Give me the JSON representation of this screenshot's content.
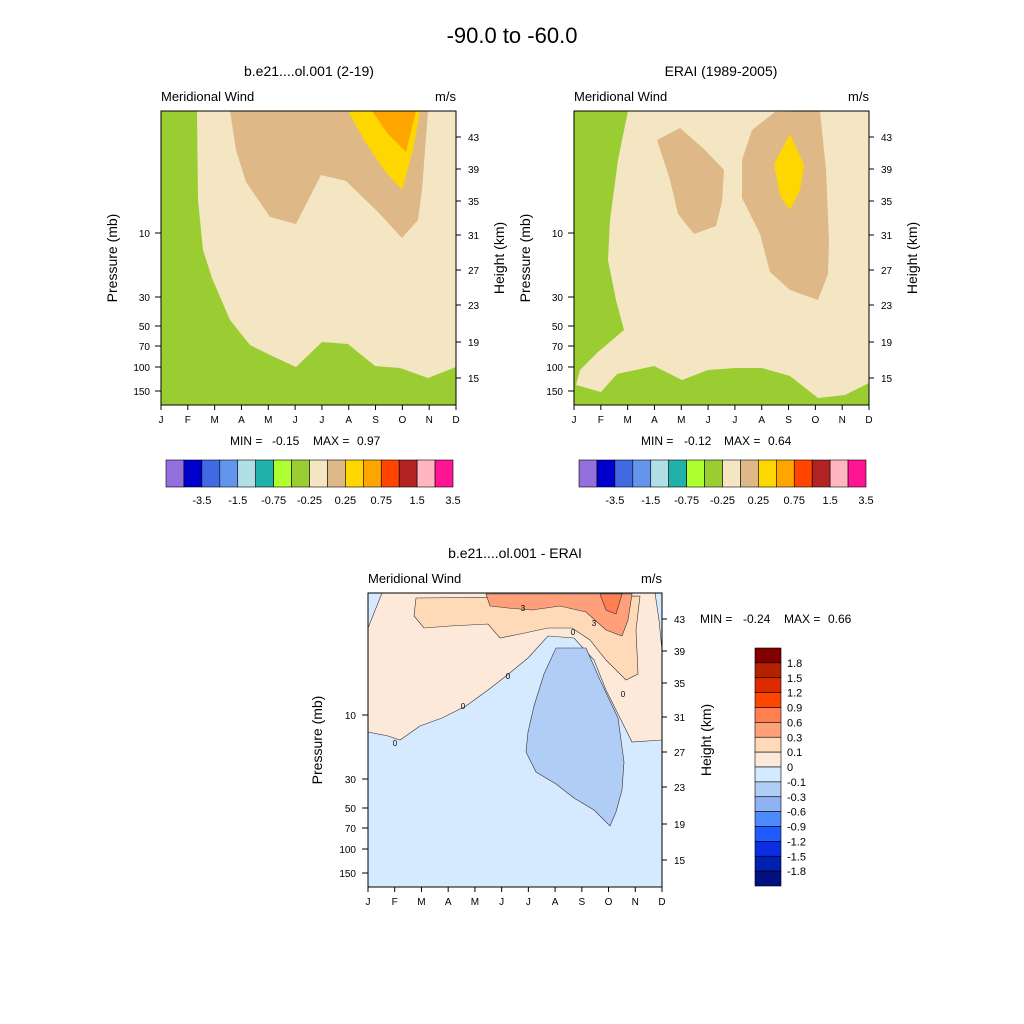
{
  "figure": {
    "title": "-90.0 to -60.0"
  },
  "shared": {
    "variable": "Meridional Wind",
    "units": "m/s",
    "y_left_label": "Pressure (mb)",
    "y_right_label": "Height (km)",
    "months": [
      "J",
      "F",
      "M",
      "A",
      "M",
      "J",
      "J",
      "A",
      "S",
      "O",
      "N",
      "D"
    ],
    "pressure_ticks": [
      "10",
      "30",
      "50",
      "70",
      "100",
      "150"
    ],
    "height_ticks": [
      "43",
      "39",
      "35",
      "31",
      "27",
      "23",
      "19",
      "15"
    ]
  },
  "chart_data": [
    {
      "type": "contour",
      "title": "b.e21....ol.001 (2-19)",
      "stats": {
        "min_label": "MIN =",
        "min": "-0.15",
        "max_label": "MAX =",
        "max": "0.97"
      },
      "colorbar": {
        "colors": [
          "#9370db",
          "#0000cd",
          "#4169e1",
          "#6495ed",
          "#b0e0e6",
          "#20b2aa",
          "#adff2f",
          "#9acd32",
          "#f5e6c3",
          "#deb887",
          "#ffd700",
          "#ffa500",
          "#ff4500",
          "#b22222",
          "#ffb6c1",
          "#ff1493"
        ],
        "labels": [
          "-3.5",
          "-1.5",
          "-0.75",
          "-0.25",
          "0.25",
          "0.75",
          "1.5",
          "3.5"
        ]
      }
    },
    {
      "type": "contour",
      "title": "ERAI (1989-2005)",
      "stats": {
        "min_label": "MIN =",
        "min": "-0.12",
        "max_label": "MAX =",
        "max": "0.64"
      },
      "colorbar": {
        "colors": [
          "#9370db",
          "#0000cd",
          "#4169e1",
          "#6495ed",
          "#b0e0e6",
          "#20b2aa",
          "#adff2f",
          "#9acd32",
          "#f5e6c3",
          "#deb887",
          "#ffd700",
          "#ffa500",
          "#ff4500",
          "#b22222",
          "#ffb6c1",
          "#ff1493"
        ],
        "labels": [
          "-3.5",
          "-1.5",
          "-0.75",
          "-0.25",
          "0.25",
          "0.75",
          "1.5",
          "3.5"
        ]
      }
    },
    {
      "type": "contour",
      "title": "b.e21....ol.001 - ERAI",
      "stats": {
        "min_label": "MIN =",
        "min": "-0.24",
        "max_label": "MAX =",
        "max": "0.66"
      },
      "contour_labels": [
        "3",
        "3",
        "0",
        "0",
        "0",
        "0",
        "0"
      ],
      "colorbar": {
        "colors": [
          "#800000",
          "#b22200",
          "#dd2b00",
          "#ff4500",
          "#ff7f50",
          "#ffa07a",
          "#ffdab9",
          "#fde9d9",
          "#d6eaff",
          "#b0cdf5",
          "#8db3f5",
          "#4d8aff",
          "#1f5cff",
          "#0a2fe0",
          "#0020b0",
          "#001080"
        ],
        "labels": [
          "1.8",
          "1.5",
          "1.2",
          "0.9",
          "0.6",
          "0.3",
          "0.1",
          "0",
          "-0.1",
          "-0.3",
          "-0.6",
          "-0.9",
          "-1.2",
          "-1.5",
          "-1.8"
        ]
      }
    }
  ]
}
